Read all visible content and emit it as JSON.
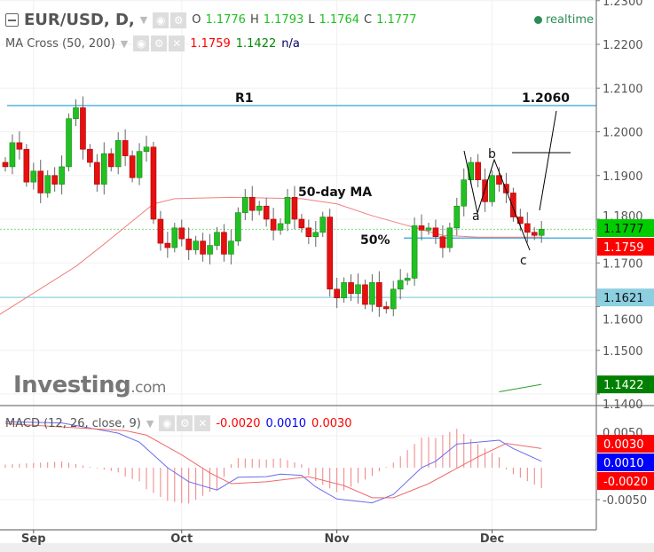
{
  "header": {
    "symbol": "EUR/USD, D,",
    "ohlc": {
      "o_label": "O",
      "o": "1.1776",
      "h_label": "H",
      "h": "1.1793",
      "l_label": "L",
      "l": "1.1764",
      "c_label": "C",
      "c": "1.1777"
    },
    "realtime": "realtime"
  },
  "ma_cross": {
    "label": "MA Cross (50, 200)",
    "v1": "1.1759",
    "v2": "1.1422",
    "v3": "n/a"
  },
  "macd_legend": {
    "label": "MACD (12, 26, close, 9)",
    "hist": "-0.0020",
    "macd": "0.0010",
    "signal": "0.0030"
  },
  "watermark": {
    "brand": "Investing",
    "suffix": ".com"
  },
  "colors": {
    "up": "#22c022",
    "down": "#e61010",
    "ma50": "#f08080",
    "ma200": "#2e9e2e",
    "macd": "#6a6af0",
    "signal": "#f06a6a",
    "level": "#1a9ad6",
    "support": "#8fd0e0"
  },
  "chart_data": [
    {
      "type": "candlestick",
      "title": "EUR/USD, D",
      "x_ticks": [
        {
          "label": "Sep",
          "index": 4
        },
        {
          "label": "Oct",
          "index": 25
        },
        {
          "label": "Nov",
          "index": 47
        },
        {
          "label": "Dec",
          "index": 69
        }
      ],
      "y_ticks": [
        "1.2300",
        "1.2200",
        "1.2100",
        "1.2000",
        "1.1900",
        "1.1800",
        "1.1700",
        "1.1600",
        "1.1500",
        "1.1400"
      ],
      "ylim": [
        1.1365,
        1.2302
      ],
      "closes": [
        1.192,
        1.1975,
        1.196,
        1.1885,
        1.191,
        1.186,
        1.19,
        1.188,
        1.192,
        1.203,
        1.2055,
        1.196,
        1.193,
        1.188,
        1.195,
        1.192,
        1.198,
        1.1945,
        1.1895,
        1.1955,
        1.1965,
        1.18,
        1.1745,
        1.1735,
        1.178,
        1.1755,
        1.173,
        1.175,
        1.172,
        1.174,
        1.177,
        1.172,
        1.175,
        1.1815,
        1.185,
        1.182,
        1.183,
        1.18,
        1.1775,
        1.179,
        1.185,
        1.18,
        1.178,
        1.176,
        1.177,
        1.1805,
        1.164,
        1.162,
        1.1655,
        1.163,
        1.165,
        1.1605,
        1.1655,
        1.16,
        1.1595,
        1.164,
        1.166,
        1.1665,
        1.1785,
        1.1775,
        1.178,
        1.176,
        1.1735,
        1.178,
        1.183,
        1.189,
        1.193,
        1.189,
        1.184,
        1.19,
        1.188,
        1.186,
        1.1805,
        1.179,
        1.177,
        1.1763,
        1.1777
      ],
      "ma50": [
        [
          -1,
          1.158
        ],
        [
          10,
          1.1692
        ],
        [
          14,
          1.1743
        ],
        [
          21,
          1.1835
        ],
        [
          24,
          1.1847
        ],
        [
          32,
          1.185
        ],
        [
          42,
          1.1847
        ],
        [
          47,
          1.1835
        ],
        [
          52,
          1.1808
        ],
        [
          56,
          1.179
        ],
        [
          62,
          1.1763
        ],
        [
          67,
          1.1759
        ],
        [
          76,
          1.1759
        ]
      ],
      "ma200": [
        [
          70,
          1.1405
        ],
        [
          76,
          1.1422
        ]
      ],
      "levels": [
        {
          "name": "R1",
          "value": 1.206,
          "label": "R1"
        },
        {
          "name": "target",
          "value": 1.206,
          "label": "1.2060"
        },
        {
          "name": "support",
          "value": 1.1621,
          "label": "1.1621"
        },
        {
          "name": "fib50",
          "value": 1.1757,
          "label": "50%"
        },
        {
          "name": "last",
          "value": 1.1777
        }
      ],
      "annotations": {
        "ma_label": "50-day MA",
        "wave_a": "a",
        "wave_b": "b",
        "wave_c": "c"
      },
      "price_badges": [
        {
          "value": "1.1777",
          "color": "#00cc00"
        },
        {
          "value": "1.1759",
          "color": "#ff0000"
        },
        {
          "value": "1.1621",
          "color": "#8ccfe0"
        },
        {
          "value": "1.1422",
          "color": "#008000"
        }
      ]
    },
    {
      "type": "line",
      "title": "MACD (12, 26, close, 9)",
      "y_ticks": [
        "0.0050",
        "-0.0050"
      ],
      "macd": [
        [
          0,
          0.0072
        ],
        [
          8,
          0.007
        ],
        [
          16,
          0.0054
        ],
        [
          19,
          0.004
        ],
        [
          23,
          0.0
        ],
        [
          26,
          -0.0022
        ],
        [
          30,
          -0.0035
        ],
        [
          33,
          -0.0015
        ],
        [
          37,
          -0.0014
        ],
        [
          39,
          -0.001
        ],
        [
          42,
          -0.0012
        ],
        [
          44,
          -0.003
        ],
        [
          47,
          -0.0049
        ],
        [
          52,
          -0.0055
        ],
        [
          55,
          -0.0042
        ],
        [
          59,
          0.0
        ],
        [
          61,
          0.001
        ],
        [
          64,
          0.0037
        ],
        [
          70,
          0.0043
        ],
        [
          72,
          0.003
        ],
        [
          76,
          0.001
        ]
      ],
      "signal": [
        [
          0,
          0.0069
        ],
        [
          17,
          0.0058
        ],
        [
          20,
          0.0051
        ],
        [
          25,
          0.002
        ],
        [
          29,
          -0.0008
        ],
        [
          32,
          -0.0025
        ],
        [
          37,
          -0.0022
        ],
        [
          43,
          -0.0014
        ],
        [
          48,
          -0.0028
        ],
        [
          52,
          -0.0047
        ],
        [
          55,
          -0.0047
        ],
        [
          60,
          -0.0025
        ],
        [
          64,
          -0.0001
        ],
        [
          67,
          0.0017
        ],
        [
          71,
          0.0038
        ],
        [
          76,
          0.003
        ]
      ],
      "price_badges": [
        {
          "value": "0.0030",
          "color": "#ff0000"
        },
        {
          "value": "0.0010",
          "color": "#0000ff"
        },
        {
          "value": "-0.0020",
          "color": "#ff0000"
        }
      ]
    }
  ]
}
